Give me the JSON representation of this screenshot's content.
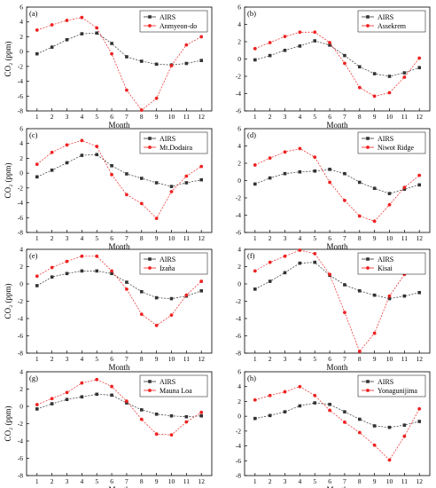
{
  "colors": {
    "airs": "#333333",
    "station": "#ee2222",
    "axis": "#000000"
  },
  "chart_data": [
    {
      "type": "line",
      "panel_label": "(a)",
      "xlabel": "Month",
      "ylabel": "CO₂ (ppm)",
      "ylim": [
        -8,
        6
      ],
      "yticks": [
        "-8",
        "-6",
        "-4",
        "-2",
        "0",
        "2",
        "4",
        "6"
      ],
      "xticks": [
        "1",
        "2",
        "3",
        "4",
        "5",
        "6",
        "7",
        "8",
        "9",
        "10",
        "11",
        "12"
      ],
      "legend_position": "top-right",
      "x": [
        1,
        2,
        3,
        4,
        5,
        6,
        7,
        8,
        9,
        10,
        11,
        12
      ],
      "series": [
        {
          "name": "AIRS",
          "color": "#333333",
          "marker": "square",
          "values": [
            -0.3,
            0.6,
            1.6,
            2.4,
            2.5,
            1.1,
            -0.7,
            -1.3,
            -1.7,
            -1.8,
            -1.6,
            -1.2
          ]
        },
        {
          "name": "Anmyeon-do",
          "color": "#ee2222",
          "marker": "circle",
          "values": [
            2.9,
            3.6,
            4.2,
            4.6,
            3.2,
            -0.3,
            -5.2,
            -7.9,
            -6.3,
            -1.9,
            0.9,
            2.0
          ]
        }
      ]
    },
    {
      "type": "line",
      "panel_label": "(b)",
      "xlabel": "Month",
      "ylabel": "",
      "ylim": [
        -6,
        6
      ],
      "yticks": [
        "-6",
        "-4",
        "-2",
        "0",
        "2",
        "4",
        "6"
      ],
      "xticks": [
        "1",
        "2",
        "3",
        "4",
        "5",
        "6",
        "7",
        "8",
        "9",
        "10",
        "11",
        "12"
      ],
      "legend_position": "top-right",
      "x": [
        1,
        2,
        3,
        4,
        5,
        6,
        7,
        8,
        9,
        10,
        11,
        12
      ],
      "series": [
        {
          "name": "AIRS",
          "color": "#333333",
          "marker": "square",
          "values": [
            -0.1,
            0.4,
            1.0,
            1.5,
            2.1,
            1.6,
            0.4,
            -0.9,
            -1.7,
            -2.0,
            -1.6,
            -1.0
          ]
        },
        {
          "name": "Assekrem",
          "color": "#ee2222",
          "marker": "circle",
          "values": [
            1.2,
            1.9,
            2.6,
            3.1,
            3.1,
            1.9,
            -0.5,
            -3.3,
            -4.3,
            -3.9,
            -2.1,
            0.1
          ]
        }
      ]
    },
    {
      "type": "line",
      "panel_label": "(c)",
      "xlabel": "Month",
      "ylabel": "CO₂ (ppm)",
      "ylim": [
        -8,
        6
      ],
      "yticks": [
        "-8",
        "-6",
        "-4",
        "-2",
        "0",
        "2",
        "4",
        "6"
      ],
      "xticks": [
        "1",
        "2",
        "3",
        "4",
        "5",
        "6",
        "7",
        "8",
        "9",
        "10",
        "11",
        "12"
      ],
      "legend_position": "top-right",
      "x": [
        1,
        2,
        3,
        4,
        5,
        6,
        7,
        8,
        9,
        10,
        11,
        12
      ],
      "series": [
        {
          "name": "AIRS",
          "color": "#333333",
          "marker": "square",
          "values": [
            -0.5,
            0.4,
            1.4,
            2.4,
            2.5,
            1.0,
            -0.1,
            -0.7,
            -1.3,
            -1.8,
            -1.3,
            -0.9
          ]
        },
        {
          "name": "Mt.Dodaira",
          "color": "#ee2222",
          "marker": "circle",
          "values": [
            1.2,
            2.8,
            3.8,
            4.4,
            3.6,
            -0.2,
            -2.9,
            -4.1,
            -6.1,
            -2.5,
            -0.4,
            0.9
          ]
        }
      ]
    },
    {
      "type": "line",
      "panel_label": "(d)",
      "xlabel": "Month",
      "ylabel": "",
      "ylim": [
        -6,
        6
      ],
      "yticks": [
        "-6",
        "-4",
        "-2",
        "0",
        "2",
        "4",
        "6"
      ],
      "xticks": [
        "1",
        "2",
        "3",
        "4",
        "5",
        "6",
        "7",
        "8",
        "9",
        "10",
        "11",
        "12"
      ],
      "legend_position": "top-right",
      "x": [
        1,
        2,
        3,
        4,
        5,
        6,
        7,
        8,
        9,
        10,
        11,
        12
      ],
      "series": [
        {
          "name": "AIRS",
          "color": "#333333",
          "marker": "square",
          "values": [
            -0.4,
            0.3,
            0.8,
            1.0,
            1.1,
            1.3,
            0.8,
            -0.2,
            -0.9,
            -1.5,
            -1.0,
            -0.5
          ]
        },
        {
          "name": "Niwot Ridge",
          "color": "#ee2222",
          "marker": "circle",
          "values": [
            1.8,
            2.6,
            3.3,
            3.7,
            2.7,
            -0.2,
            -2.3,
            -4.1,
            -4.7,
            -2.8,
            -0.8,
            0.6
          ]
        }
      ]
    },
    {
      "type": "line",
      "panel_label": "(e)",
      "xlabel": "Month",
      "ylabel": "CO₂ (ppm)",
      "ylim": [
        -8,
        4
      ],
      "yticks": [
        "-8",
        "-6",
        "-4",
        "-2",
        "0",
        "2",
        "4"
      ],
      "xticks": [
        "1",
        "2",
        "3",
        "4",
        "5",
        "6",
        "7",
        "8",
        "9",
        "10",
        "11",
        "12"
      ],
      "legend_position": "top-right",
      "x": [
        1,
        2,
        3,
        4,
        5,
        6,
        7,
        8,
        9,
        10,
        11,
        12
      ],
      "series": [
        {
          "name": "AIRS",
          "color": "#333333",
          "marker": "square",
          "values": [
            -0.2,
            0.8,
            1.2,
            1.5,
            1.5,
            1.2,
            0.2,
            -0.9,
            -1.6,
            -1.7,
            -1.4,
            -0.8
          ]
        },
        {
          "name": "Izaña",
          "color": "#ee2222",
          "marker": "circle",
          "values": [
            0.9,
            1.9,
            2.6,
            3.2,
            3.2,
            1.5,
            -0.6,
            -3.5,
            -4.8,
            -3.6,
            -1.3,
            0.3
          ]
        }
      ]
    },
    {
      "type": "line",
      "panel_label": "(f)",
      "xlabel": "Month",
      "ylabel": "",
      "ylim": [
        -8,
        4
      ],
      "yticks": [
        "-8",
        "-6",
        "-4",
        "-2",
        "0",
        "2",
        "4"
      ],
      "xticks": [
        "1",
        "2",
        "3",
        "4",
        "5",
        "6",
        "7",
        "8",
        "9",
        "10",
        "11",
        "12"
      ],
      "legend_position": "top-right",
      "x": [
        1,
        2,
        3,
        4,
        5,
        6,
        7,
        8,
        9,
        10,
        11,
        12
      ],
      "series": [
        {
          "name": "AIRS",
          "color": "#333333",
          "marker": "square",
          "values": [
            -0.6,
            0.3,
            1.3,
            2.4,
            2.5,
            1.0,
            -0.1,
            -0.8,
            -1.3,
            -1.7,
            -1.4,
            -1.0
          ]
        },
        {
          "name": "Kisai",
          "color": "#ee2222",
          "marker": "circle",
          "values": [
            1.5,
            2.5,
            3.2,
            3.9,
            3.5,
            1.1,
            -3.3,
            -7.8,
            -5.7,
            -1.4,
            1.1,
            1.5
          ]
        }
      ]
    },
    {
      "type": "line",
      "panel_label": "(g)",
      "xlabel": "Month",
      "ylabel": "CO₂ (ppm)",
      "ylim": [
        -8,
        4
      ],
      "yticks": [
        "-8",
        "-6",
        "-4",
        "-2",
        "0",
        "2",
        "4"
      ],
      "xticks": [
        "1",
        "2",
        "3",
        "4",
        "5",
        "6",
        "7",
        "8",
        "9",
        "10",
        "11",
        "12"
      ],
      "legend_position": "top-right",
      "x": [
        1,
        2,
        3,
        4,
        5,
        6,
        7,
        8,
        9,
        10,
        11,
        12
      ],
      "series": [
        {
          "name": "AIRS",
          "color": "#333333",
          "marker": "square",
          "values": [
            -0.3,
            0.3,
            0.8,
            1.1,
            1.4,
            1.3,
            0.4,
            -0.4,
            -0.9,
            -1.1,
            -1.2,
            -1.1
          ]
        },
        {
          "name": "Mauna Loa",
          "color": "#ee2222",
          "marker": "circle",
          "values": [
            0.2,
            0.9,
            1.6,
            2.7,
            3.1,
            2.3,
            0.6,
            -1.5,
            -3.2,
            -3.3,
            -1.8,
            -0.7
          ]
        }
      ]
    },
    {
      "type": "line",
      "panel_label": "(h)",
      "xlabel": "Month",
      "ylabel": "",
      "ylim": [
        -8,
        6
      ],
      "yticks": [
        "-8",
        "-6",
        "-4",
        "-2",
        "0",
        "2",
        "4",
        "6"
      ],
      "xticks": [
        "1",
        "2",
        "3",
        "4",
        "5",
        "6",
        "7",
        "8",
        "9",
        "10",
        "11",
        "12"
      ],
      "legend_position": "top-right",
      "x": [
        1,
        2,
        3,
        4,
        5,
        6,
        7,
        8,
        9,
        10,
        11,
        12
      ],
      "series": [
        {
          "name": "AIRS",
          "color": "#333333",
          "marker": "square",
          "values": [
            -0.3,
            0.1,
            0.6,
            1.4,
            1.8,
            1.6,
            0.6,
            -0.4,
            -1.3,
            -1.5,
            -1.2,
            -0.7
          ]
        },
        {
          "name": "Yonagunijima",
          "color": "#ee2222",
          "marker": "circle",
          "values": [
            2.2,
            2.8,
            3.3,
            4.0,
            2.8,
            0.8,
            -0.8,
            -2.2,
            -3.9,
            -5.9,
            -2.7,
            1.0
          ]
        }
      ]
    }
  ]
}
